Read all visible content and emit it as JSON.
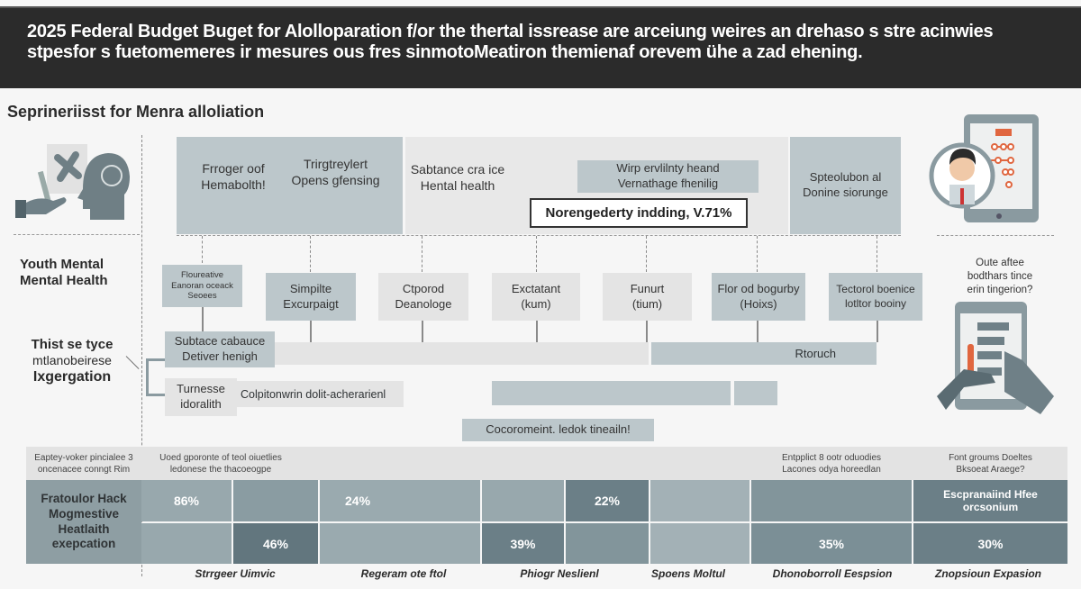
{
  "header": {
    "line1": "2025 Federal Budget Buget for Alolloparation f/or  the thertal issrease are arceiung weires an drehaso s stre acinwies",
    "line2": "stpesfor s fuetomemeres  ir mesures ous fres sinmotoMeatiron themienaf orevem ühe a zad ehening."
  },
  "subtitle": "Seprineriisst for Menra alloliation",
  "top_boxes": {
    "box1_a": [
      "Frroger oof",
      "Hemabolth!"
    ],
    "box1_b": [
      "Trirgtreylert",
      "Opens gfensing"
    ],
    "box2_a": [
      "Sabtance cra ice",
      "Hental health"
    ],
    "box2_inner": [
      "Wirp ervlilnty heand",
      "Vernathage fhenilig"
    ],
    "highlight": "Norengederty indding, V.71%",
    "box3": [
      "Spteolubon al",
      "Donine siorunge"
    ]
  },
  "left_labels": {
    "youth": [
      "Youth Mental",
      "Mental Health"
    ],
    "integration": [
      "Thist se tyce",
      "mtlanobeirese",
      "Ixgergation"
    ]
  },
  "stage_boxes": [
    [
      "Floureative",
      "Eanoran oceack",
      "Seoees"
    ],
    [
      "Simpilte",
      "Excurpaigt"
    ],
    [
      "Ctporod",
      "Deanologe"
    ],
    [
      "Exctatant",
      "(kum)"
    ],
    [
      "Funurt",
      "(tium)"
    ],
    [
      "Flor od bogurby",
      "(Hoixs)"
    ],
    [
      "Tectorol boenice",
      "lotltor booiny"
    ]
  ],
  "bars": {
    "row1_label": [
      "Subtace cabauce",
      "Detiver henigh"
    ],
    "row1_right": "Rtoruch",
    "row2_label": [
      "Turnesse",
      "idoralith"
    ],
    "row2_text": "Colpitonwrin dolit-acherarienl",
    "callout": "Cocoromeint. ledok tineailn!"
  },
  "right_question": [
    "Oute aftee",
    "bodthars tince",
    "erin tingerion?"
  ],
  "table": {
    "header_left": [
      "Eaptey-voker pincialee 3",
      "oncenacee conngt Rim"
    ],
    "header_mid": [
      "Uoed gporonte of teol oiuetlies",
      "ledonese the thacoeogpe"
    ],
    "header_right1": [
      "Entpplict 8 ootr oduodies",
      "Lacones odya horeedlan"
    ],
    "header_right2": [
      "Font groums Doeltes",
      "Bksoeat Araege?"
    ],
    "row_label": [
      "Fratoulor Hack",
      "Mogmestive",
      "Heatlaith",
      "exepcation"
    ],
    "row1": [
      "86%",
      "",
      "24%",
      "",
      "22%",
      "",
      "",
      "Escpranaiind Hfee orcsonium"
    ],
    "row2": [
      "",
      "46%",
      "",
      "39%",
      "",
      "",
      "35%",
      "30%"
    ],
    "footers": [
      "Strrgeer Uimvic",
      "Regeram ote ftol",
      "Phiogr Nesliеnl",
      "Spoens Moltul",
      "Dhonoborroll Eespsion",
      "Znopsioun Expasion"
    ]
  },
  "colors": {
    "header_bg": "#2b2b2b",
    "box_dark": "#bcc7cb",
    "box_light": "#e4e4e4",
    "cell_dark": "#62767e",
    "accent_red": "#e0663f"
  }
}
